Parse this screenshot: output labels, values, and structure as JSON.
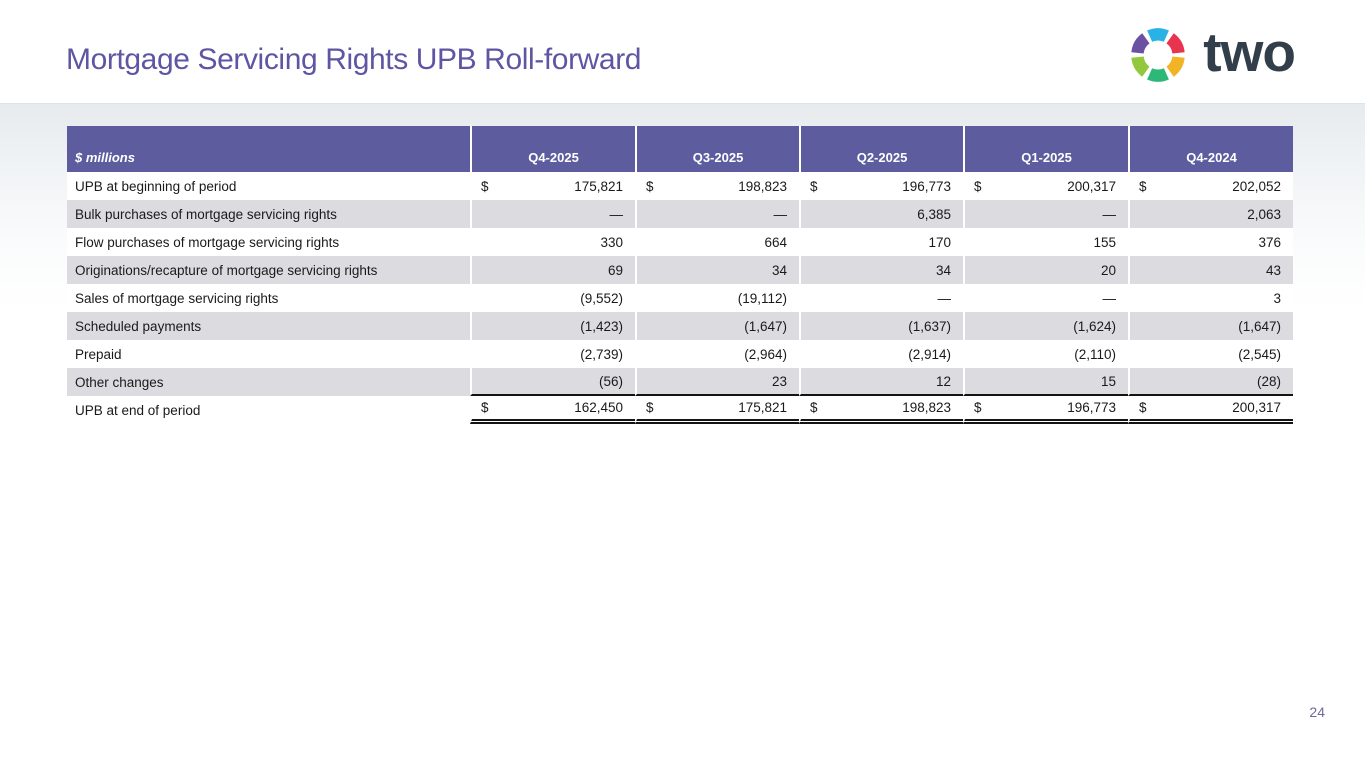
{
  "slide": {
    "title": "Mortgage Servicing Rights UPB Roll-forward",
    "page_number": "24"
  },
  "logo": {
    "word": "two",
    "mark_name": "two-pinwheel-logo",
    "colors": {
      "cyan": "#29b2e6",
      "red": "#e8344e",
      "yellow": "#f2b327",
      "green": "#2eb877",
      "lime": "#93c83d",
      "purple": "#6b51a1",
      "word_navy": "#323e4a"
    }
  },
  "theme": {
    "header_purple": "#5c5c9e",
    "stripe_gray": "#dcdce0",
    "title_purple": "#5e55a3"
  },
  "table": {
    "unit_label": "$ millions",
    "currency_symbol": "$",
    "columns": [
      "Q4-2025",
      "Q3-2025",
      "Q2-2025",
      "Q1-2025",
      "Q4-2024"
    ],
    "rows": [
      {
        "label": "UPB at beginning of period",
        "dollar": true,
        "values": [
          "175,821",
          "198,823",
          "196,773",
          "200,317",
          "202,052"
        ]
      },
      {
        "label": "Bulk purchases of mortgage servicing rights",
        "dollar": false,
        "values": [
          "—",
          "—",
          "6,385",
          "—",
          "2,063"
        ]
      },
      {
        "label": "Flow purchases of mortgage servicing rights",
        "dollar": false,
        "values": [
          "330",
          "664",
          "170",
          "155",
          "376"
        ]
      },
      {
        "label": "Originations/recapture of mortgage servicing rights",
        "dollar": false,
        "values": [
          "69",
          "34",
          "34",
          "20",
          "43"
        ]
      },
      {
        "label": "Sales of mortgage servicing rights",
        "dollar": false,
        "values": [
          "(9,552)",
          "(19,112)",
          "—",
          "—",
          "3"
        ]
      },
      {
        "label": "Scheduled payments",
        "dollar": false,
        "values": [
          "(1,423)",
          "(1,647)",
          "(1,637)",
          "(1,624)",
          "(1,647)"
        ]
      },
      {
        "label": "Prepaid",
        "dollar": false,
        "values": [
          "(2,739)",
          "(2,964)",
          "(2,914)",
          "(2,110)",
          "(2,545)"
        ]
      },
      {
        "label": "Other changes",
        "dollar": false,
        "values": [
          "(56)",
          "23",
          "12",
          "15",
          "(28)"
        ]
      },
      {
        "label": "UPB at end of period",
        "dollar": true,
        "values": [
          "162,450",
          "175,821",
          "198,823",
          "196,773",
          "200,317"
        ]
      }
    ]
  }
}
